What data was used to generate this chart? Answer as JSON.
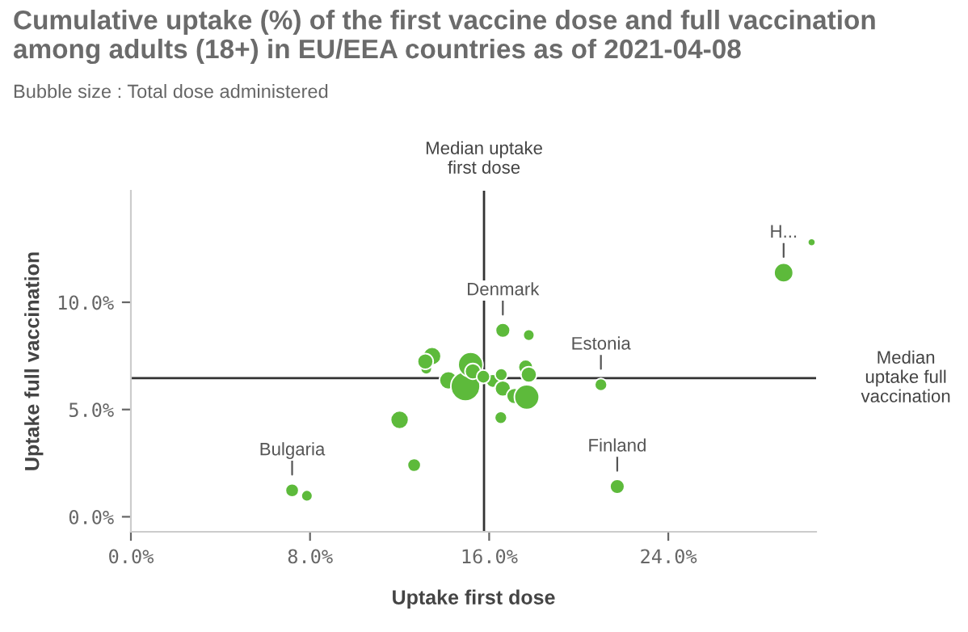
{
  "chart_data": {
    "type": "bubble",
    "title": "Cumulative uptake (%) of the first vaccine dose and full vaccination among adults (18+) in EU/EEA countries as of 2021-04-08",
    "subtitle": "Bubble size : Total dose administered",
    "xlabel": "Uptake first dose",
    "ylabel": "Uptake full vaccination",
    "series": [
      {
        "color": "#5dba3b",
        "x": [
          7.2,
          7.86,
          12.0,
          12.65,
          13.19,
          13.45,
          13.15,
          14.18,
          14.94,
          15.17,
          15.27,
          16.16,
          15.74,
          16.61,
          17.77,
          16.54,
          16.61,
          16.52,
          17.63,
          17.77,
          17.13,
          17.68,
          20.99,
          21.72,
          29.15,
          30.4
        ],
        "values": [
          1.23,
          0.98,
          4.52,
          2.41,
          6.9,
          7.49,
          7.24,
          6.36,
          6.08,
          7.09,
          6.78,
          6.33,
          6.53,
          8.69,
          8.47,
          6.63,
          5.98,
          4.62,
          6.98,
          6.63,
          5.63,
          5.58,
          6.16,
          1.41,
          11.38,
          12.8
        ],
        "sizes": [
          0.21,
          0.15,
          0.38,
          0.21,
          0.15,
          0.38,
          0.29,
          0.38,
          1.0,
          0.72,
          0.29,
          0.21,
          0.21,
          0.25,
          0.15,
          0.18,
          0.29,
          0.18,
          0.25,
          0.29,
          0.29,
          0.72,
          0.18,
          0.25,
          0.43,
          0.07
        ]
      }
    ],
    "xlim": [
      0,
      30.6
    ],
    "ylim": [
      -0.7,
      15.2
    ],
    "xticks": [
      {
        "value": 0,
        "label": "0.0%"
      },
      {
        "value": 8,
        "label": "8.0%"
      },
      {
        "value": 16,
        "label": "16.0%"
      },
      {
        "value": 24,
        "label": "24.0%"
      }
    ],
    "yticks": [
      {
        "value": 0,
        "label": "0.0%"
      },
      {
        "value": 5,
        "label": "5.0%"
      },
      {
        "value": 10,
        "label": "10.0%"
      }
    ],
    "ref_lines": [
      {
        "axis": "x",
        "value": 15.77,
        "label": "Median uptake\nfirst dose",
        "color": "#333333"
      },
      {
        "axis": "y",
        "value": 6.46,
        "label": "Median\nuptake full\nvaccination",
        "color": "#333333"
      }
    ],
    "annotations": [
      {
        "text": "Bulgaria",
        "x": 7.2,
        "y": 1.23
      },
      {
        "text": "Denmark",
        "x": 16.61,
        "y": 8.69
      },
      {
        "text": "Estonia",
        "x": 20.99,
        "y": 6.16
      },
      {
        "text": "Finland",
        "x": 21.72,
        "y": 1.41
      },
      {
        "text": "H...",
        "x": 29.15,
        "y": 11.38
      }
    ],
    "grid": false
  }
}
